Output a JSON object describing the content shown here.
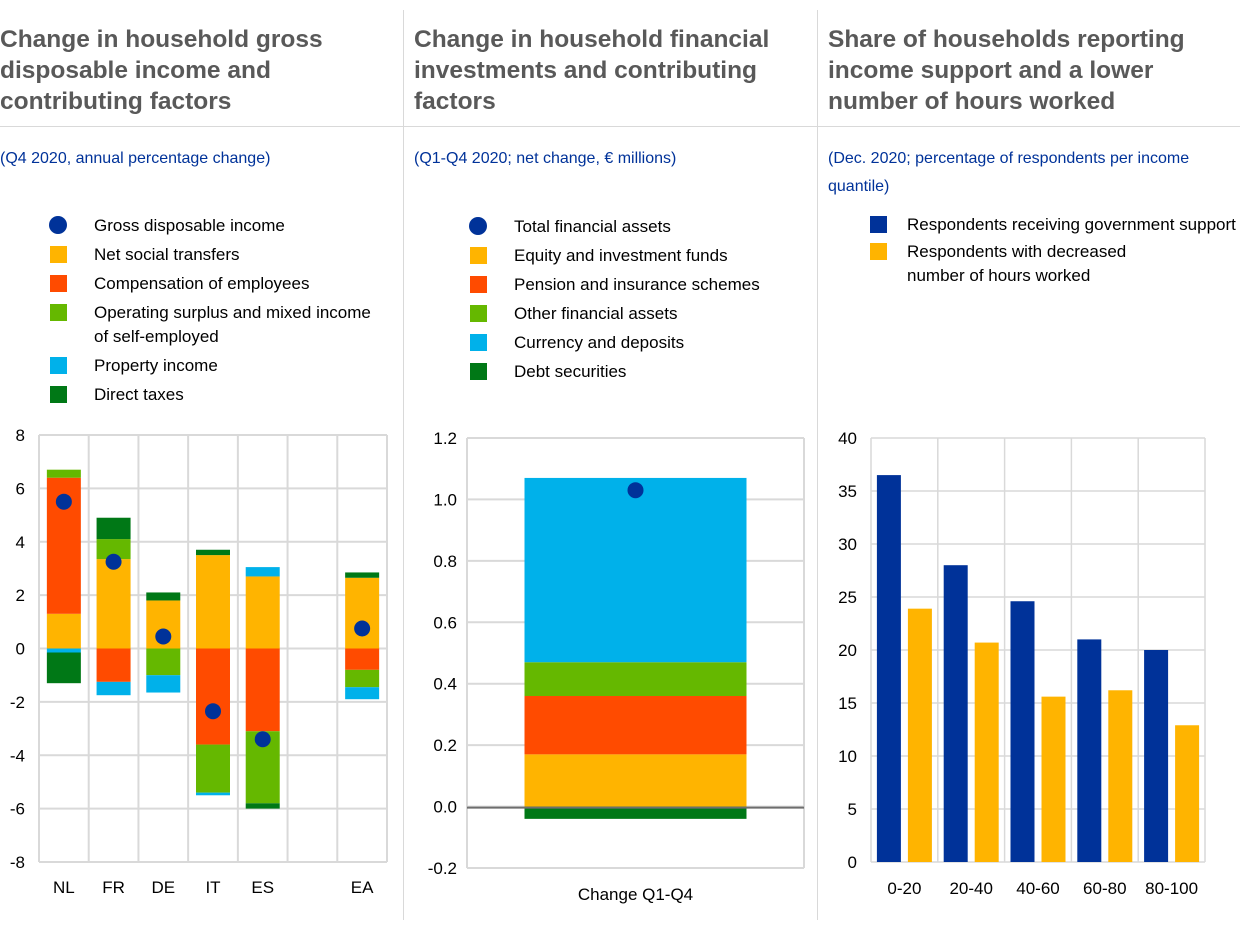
{
  "panels": [
    {
      "title": "Change in household gross\ndisposable income and\ncontributing factors",
      "subtitle": "(Q4 2020, annual percentage change)",
      "legend": [
        {
          "label": "Gross disposable income",
          "color": "#003299",
          "shape": "dot"
        },
        {
          "label": "Net social transfers",
          "color": "#FFB400",
          "shape": "square"
        },
        {
          "label": "Compensation of employees",
          "color": "#FF4B00",
          "shape": "square"
        },
        {
          "label": "Operating surplus and mixed income of self-employed",
          "color": "#65B800",
          "shape": "square"
        },
        {
          "label": "Property income",
          "color": "#00B1EA",
          "shape": "square"
        },
        {
          "label": "Direct taxes",
          "color": "#007816",
          "shape": "square"
        }
      ]
    },
    {
      "title": "Change in household financial\ninvestments and contributing\nfactors",
      "subtitle": "(Q1-Q4 2020; net change, € millions)",
      "legend": [
        {
          "label": "Total financial assets",
          "color": "#003299",
          "shape": "dot"
        },
        {
          "label": "Equity and investment funds",
          "color": "#FFB400",
          "shape": "square"
        },
        {
          "label": "Pension and insurance schemes",
          "color": "#FF4B00",
          "shape": "square"
        },
        {
          "label": "Other financial assets",
          "color": "#65B800",
          "shape": "square"
        },
        {
          "label": "Currency and deposits",
          "color": "#00B1EA",
          "shape": "square"
        },
        {
          "label": "Debt securities",
          "color": "#007816",
          "shape": "square"
        }
      ]
    },
    {
      "title": "Share of households reporting\nincome support and a lower\nnumber of hours worked",
      "subtitle": "(Dec. 2020; percentage of respondents per income quantile)",
      "legend": [
        {
          "label": "Respondents receiving government support",
          "color": "#003299",
          "shape": "square"
        },
        {
          "label": "Respondents with decreased number of hours worked",
          "color": "#FFB400",
          "shape": "square"
        }
      ]
    }
  ],
  "chart_data": [
    {
      "type": "bar",
      "stacked": true,
      "title": "Change in household gross disposable income and contributing factors",
      "subtitle": "(Q4 2020, annual percentage change)",
      "categories": [
        "NL",
        "FR",
        "DE",
        "IT",
        "ES",
        "",
        "EA"
      ],
      "ylim": [
        -8,
        8
      ],
      "yticks": [
        8,
        6,
        4,
        2,
        0,
        -2,
        -4,
        -6,
        -8
      ],
      "grid": true,
      "legend_position": "top",
      "series": [
        {
          "name": "Net social transfers",
          "color": "#FFB400",
          "values": [
            1.3,
            3.35,
            1.8,
            3.5,
            2.7,
            null,
            2.65
          ]
        },
        {
          "name": "Compensation of employees",
          "color": "#FF4B00",
          "values": [
            5.1,
            -1.25,
            0,
            -3.6,
            -3.1,
            null,
            -0.8
          ]
        },
        {
          "name": "Operating surplus and mixed income of self-employed",
          "color": "#65B800",
          "values": [
            0.3,
            0.75,
            -1.0,
            -1.8,
            -2.7,
            null,
            -0.65
          ]
        },
        {
          "name": "Property income",
          "color": "#00B1EA",
          "values": [
            -0.15,
            -0.5,
            -0.65,
            -0.1,
            0.35,
            null,
            -0.45
          ]
        },
        {
          "name": "Direct taxes",
          "color": "#007816",
          "values": [
            -1.15,
            0.8,
            0.3,
            0.2,
            -0.2,
            null,
            0.2
          ]
        }
      ],
      "markers": {
        "name": "Gross disposable income",
        "color": "#003299",
        "values": [
          5.5,
          3.25,
          0.45,
          -2.35,
          -3.4,
          null,
          0.75
        ]
      }
    },
    {
      "type": "bar",
      "stacked": true,
      "title": "Change in household financial investments and contributing factors",
      "subtitle": "(Q1-Q4 2020; net change, € millions)",
      "categories": [
        "Change Q1-Q4"
      ],
      "ylim": [
        -0.2,
        1.2
      ],
      "yticks": [
        "1.2",
        "1.0",
        "0.8",
        "0.6",
        "0.4",
        "0.2",
        "0.0",
        "-0.2"
      ],
      "grid": true,
      "legend_position": "top",
      "series": [
        {
          "name": "Equity and investment funds",
          "color": "#FFB400",
          "values": [
            0.17
          ]
        },
        {
          "name": "Pension and insurance schemes",
          "color": "#FF4B00",
          "values": [
            0.19
          ]
        },
        {
          "name": "Other financial assets",
          "color": "#65B800",
          "values": [
            0.11
          ]
        },
        {
          "name": "Currency and deposits",
          "color": "#00B1EA",
          "values": [
            0.6
          ]
        },
        {
          "name": "Debt securities",
          "color": "#007816",
          "values": [
            -0.04
          ]
        }
      ],
      "markers": {
        "name": "Total financial assets",
        "color": "#003299",
        "values": [
          1.03
        ]
      }
    },
    {
      "type": "bar",
      "stacked": false,
      "title": "Share of households reporting income support and a lower number of hours worked",
      "subtitle": "(Dec. 2020; percentage of respondents per income quantile)",
      "categories": [
        "0-20",
        "20-40",
        "40-60",
        "60-80",
        "80-100"
      ],
      "ylim": [
        0,
        40
      ],
      "yticks": [
        40,
        35,
        30,
        25,
        20,
        15,
        10,
        5,
        0
      ],
      "grid": true,
      "legend_position": "top",
      "series": [
        {
          "name": "Respondents receiving government support",
          "color": "#003299",
          "values": [
            36.5,
            28.0,
            24.6,
            21.0,
            20.0
          ]
        },
        {
          "name": "Respondents with decreased number of hours worked",
          "color": "#FFB400",
          "values": [
            23.9,
            20.7,
            15.6,
            16.2,
            12.9
          ]
        }
      ]
    }
  ]
}
